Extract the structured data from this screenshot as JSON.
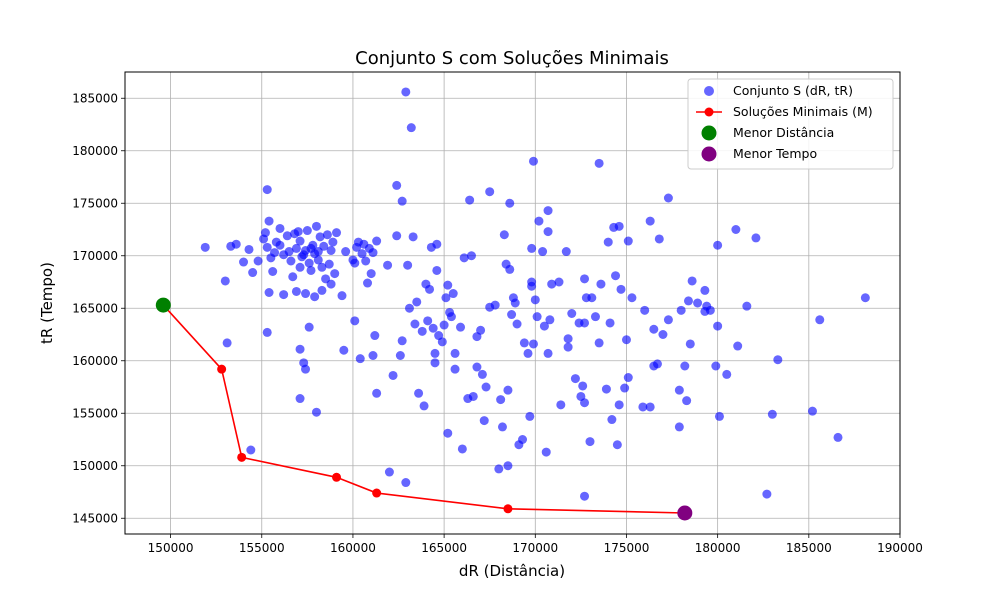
{
  "chart_data": {
    "type": "scatter",
    "title": "Conjunto S com Soluções Minimais",
    "xlabel": "dR (Distância)",
    "ylabel": "tR (Tempo)",
    "xlim": [
      147500,
      190000
    ],
    "ylim": [
      143500,
      187500
    ],
    "xticks": [
      150000,
      155000,
      160000,
      165000,
      170000,
      175000,
      180000,
      185000,
      190000
    ],
    "yticks": [
      145000,
      150000,
      155000,
      160000,
      165000,
      170000,
      175000,
      180000,
      185000
    ],
    "grid": true,
    "legend_position": "top-right",
    "series": [
      {
        "name": "Conjunto S (dR, tR)",
        "kind": "scatter",
        "color": "#0000ff",
        "points": [
          [
            151900,
            170800
          ],
          [
            153000,
            167600
          ],
          [
            153300,
            170900
          ],
          [
            153600,
            171100
          ],
          [
            154000,
            169400
          ],
          [
            154500,
            168400
          ],
          [
            154800,
            169500
          ],
          [
            155100,
            171600
          ],
          [
            155200,
            172200
          ],
          [
            155300,
            170800
          ],
          [
            155500,
            169800
          ],
          [
            155600,
            168500
          ],
          [
            155800,
            171300
          ],
          [
            156000,
            172600
          ],
          [
            156200,
            170100
          ],
          [
            156400,
            171900
          ],
          [
            156600,
            169500
          ],
          [
            156700,
            168000
          ],
          [
            156900,
            170700
          ],
          [
            157000,
            172300
          ],
          [
            157100,
            171400
          ],
          [
            157200,
            169900
          ],
          [
            157400,
            170500
          ],
          [
            157500,
            172400
          ],
          [
            157600,
            169300
          ],
          [
            157700,
            168600
          ],
          [
            157800,
            171000
          ],
          [
            157900,
            170200
          ],
          [
            158000,
            172800
          ],
          [
            158100,
            169600
          ],
          [
            158200,
            171800
          ],
          [
            158300,
            168900
          ],
          [
            158400,
            170900
          ],
          [
            158500,
            167800
          ],
          [
            158600,
            172000
          ],
          [
            158700,
            169200
          ],
          [
            158800,
            170500
          ],
          [
            158900,
            171300
          ],
          [
            159000,
            168300
          ],
          [
            159100,
            172200
          ],
          [
            155400,
            166500
          ],
          [
            156200,
            166300
          ],
          [
            156900,
            166600
          ],
          [
            157400,
            166400
          ],
          [
            157900,
            166100
          ],
          [
            158300,
            166700
          ],
          [
            158800,
            167300
          ],
          [
            157100,
            168900
          ],
          [
            156500,
            170400
          ],
          [
            157300,
            170100
          ],
          [
            157700,
            170700
          ],
          [
            156000,
            171000
          ],
          [
            156800,
            172100
          ],
          [
            158100,
            170400
          ],
          [
            155700,
            170300
          ],
          [
            159400,
            166200
          ],
          [
            159600,
            170400
          ],
          [
            160000,
            169600
          ],
          [
            160200,
            170800
          ],
          [
            160300,
            171300
          ],
          [
            160500,
            170200
          ],
          [
            160700,
            169500
          ],
          [
            160900,
            170700
          ],
          [
            161100,
            170300
          ],
          [
            161300,
            171400
          ],
          [
            160100,
            169300
          ],
          [
            160600,
            171100
          ],
          [
            160800,
            167400
          ],
          [
            161000,
            168300
          ],
          [
            154300,
            170600
          ],
          [
            155300,
            176300
          ],
          [
            155400,
            173300
          ],
          [
            155300,
            162700
          ],
          [
            153100,
            161700
          ],
          [
            154400,
            151500
          ],
          [
            157100,
            161100
          ],
          [
            157300,
            159800
          ],
          [
            157400,
            159200
          ],
          [
            157100,
            156400
          ],
          [
            157600,
            163200
          ],
          [
            158000,
            155100
          ],
          [
            159500,
            161000
          ],
          [
            160100,
            163800
          ],
          [
            160400,
            160200
          ],
          [
            161100,
            160500
          ],
          [
            161200,
            162400
          ],
          [
            161300,
            156900
          ],
          [
            161900,
            169100
          ],
          [
            162000,
            149400
          ],
          [
            162200,
            158600
          ],
          [
            162400,
            171900
          ],
          [
            162400,
            176700
          ],
          [
            162600,
            160500
          ],
          [
            162700,
            175200
          ],
          [
            162700,
            161900
          ],
          [
            162900,
            148400
          ],
          [
            162900,
            185600
          ],
          [
            163000,
            169100
          ],
          [
            163100,
            165000
          ],
          [
            163200,
            182200
          ],
          [
            163300,
            171800
          ],
          [
            163400,
            163500
          ],
          [
            163500,
            165600
          ],
          [
            163600,
            156900
          ],
          [
            163800,
            162800
          ],
          [
            163900,
            155700
          ],
          [
            164000,
            167300
          ],
          [
            164100,
            163800
          ],
          [
            164200,
            166800
          ],
          [
            164300,
            170800
          ],
          [
            164400,
            163100
          ],
          [
            164500,
            159800
          ],
          [
            164500,
            160700
          ],
          [
            164600,
            171100
          ],
          [
            164600,
            168600
          ],
          [
            164700,
            162400
          ],
          [
            164900,
            161800
          ],
          [
            165000,
            163400
          ],
          [
            165100,
            166000
          ],
          [
            165200,
            153100
          ],
          [
            165200,
            167200
          ],
          [
            165300,
            164600
          ],
          [
            165400,
            164200
          ],
          [
            165500,
            166400
          ],
          [
            165600,
            160700
          ],
          [
            165600,
            159200
          ],
          [
            165900,
            163200
          ],
          [
            166000,
            151600
          ],
          [
            166100,
            169800
          ],
          [
            166300,
            156400
          ],
          [
            166400,
            175300
          ],
          [
            166500,
            170000
          ],
          [
            166600,
            156600
          ],
          [
            166800,
            162300
          ],
          [
            166800,
            159400
          ],
          [
            167000,
            162900
          ],
          [
            167100,
            158700
          ],
          [
            167200,
            154300
          ],
          [
            167300,
            157500
          ],
          [
            167500,
            165100
          ],
          [
            167500,
            176100
          ],
          [
            167800,
            165300
          ],
          [
            168000,
            149700
          ],
          [
            168100,
            156300
          ],
          [
            168200,
            153700
          ],
          [
            168300,
            172000
          ],
          [
            168400,
            169200
          ],
          [
            168500,
            150000
          ],
          [
            168500,
            157200
          ],
          [
            168600,
            175000
          ],
          [
            168600,
            168700
          ],
          [
            168700,
            164400
          ],
          [
            168800,
            166000
          ],
          [
            168900,
            165500
          ],
          [
            169000,
            163500
          ],
          [
            169100,
            152000
          ],
          [
            169300,
            152500
          ],
          [
            169400,
            161700
          ],
          [
            169600,
            160700
          ],
          [
            169700,
            154700
          ],
          [
            169800,
            170700
          ],
          [
            169800,
            167500
          ],
          [
            169800,
            167100
          ],
          [
            169900,
            179000
          ],
          [
            169900,
            161600
          ],
          [
            170000,
            165800
          ],
          [
            170100,
            164200
          ],
          [
            170200,
            173300
          ],
          [
            170400,
            170400
          ],
          [
            170500,
            163300
          ],
          [
            170600,
            151300
          ],
          [
            170700,
            174300
          ],
          [
            170700,
            172300
          ],
          [
            170700,
            160700
          ],
          [
            170800,
            163900
          ],
          [
            170900,
            167300
          ],
          [
            171300,
            167500
          ],
          [
            171400,
            155800
          ],
          [
            171700,
            170400
          ],
          [
            171800,
            162100
          ],
          [
            171800,
            161300
          ],
          [
            172000,
            164500
          ],
          [
            172200,
            158300
          ],
          [
            172400,
            163600
          ],
          [
            172500,
            156600
          ],
          [
            172600,
            157600
          ],
          [
            172700,
            167800
          ],
          [
            172700,
            163600
          ],
          [
            172700,
            156000
          ],
          [
            172700,
            147100
          ],
          [
            172800,
            166000
          ],
          [
            173000,
            152300
          ],
          [
            173100,
            166000
          ],
          [
            173300,
            164200
          ],
          [
            173500,
            178800
          ],
          [
            173500,
            161700
          ],
          [
            173600,
            167300
          ],
          [
            173900,
            157300
          ],
          [
            174000,
            171300
          ],
          [
            174100,
            163600
          ],
          [
            174200,
            154400
          ],
          [
            174300,
            172700
          ],
          [
            174400,
            168100
          ],
          [
            174500,
            152000
          ],
          [
            174600,
            172800
          ],
          [
            174600,
            155800
          ],
          [
            174700,
            166800
          ],
          [
            174900,
            157400
          ],
          [
            175000,
            162000
          ],
          [
            175100,
            158400
          ],
          [
            175100,
            171400
          ],
          [
            175300,
            166000
          ],
          [
            175900,
            155600
          ],
          [
            176000,
            164800
          ],
          [
            176300,
            155600
          ],
          [
            176300,
            173300
          ],
          [
            176500,
            163000
          ],
          [
            176500,
            159500
          ],
          [
            176700,
            159700
          ],
          [
            176800,
            171600
          ],
          [
            177000,
            162500
          ],
          [
            177300,
            175500
          ],
          [
            177300,
            163900
          ],
          [
            177900,
            153700
          ],
          [
            177900,
            157200
          ],
          [
            178000,
            164800
          ],
          [
            178200,
            159500
          ],
          [
            178300,
            156200
          ],
          [
            178400,
            165700
          ],
          [
            178500,
            161600
          ],
          [
            178600,
            167600
          ],
          [
            178900,
            165500
          ],
          [
            179300,
            164700
          ],
          [
            179300,
            166700
          ],
          [
            179400,
            165200
          ],
          [
            179600,
            164800
          ],
          [
            179900,
            159500
          ],
          [
            180000,
            163300
          ],
          [
            180000,
            171000
          ],
          [
            180100,
            154700
          ],
          [
            180500,
            158700
          ],
          [
            181000,
            172500
          ],
          [
            181100,
            161400
          ],
          [
            181600,
            165200
          ],
          [
            182100,
            171700
          ],
          [
            182700,
            147300
          ],
          [
            183000,
            154900
          ],
          [
            183300,
            160100
          ],
          [
            185200,
            155200
          ],
          [
            185600,
            163900
          ],
          [
            186600,
            152700
          ],
          [
            188100,
            166000
          ]
        ]
      },
      {
        "name": "Soluções Minimais (M)",
        "kind": "line-markers",
        "color": "#ff0000",
        "points": [
          [
            149600,
            165300
          ],
          [
            152800,
            159200
          ],
          [
            153900,
            150800
          ],
          [
            159100,
            148900
          ],
          [
            161300,
            147400
          ],
          [
            168500,
            145900
          ],
          [
            178200,
            145500
          ]
        ]
      },
      {
        "name": "Menor Distância",
        "kind": "highlight",
        "color": "#008000",
        "points": [
          [
            149600,
            165300
          ]
        ]
      },
      {
        "name": "Menor Tempo",
        "kind": "highlight",
        "color": "#800080",
        "points": [
          [
            178200,
            145500
          ]
        ]
      }
    ]
  }
}
